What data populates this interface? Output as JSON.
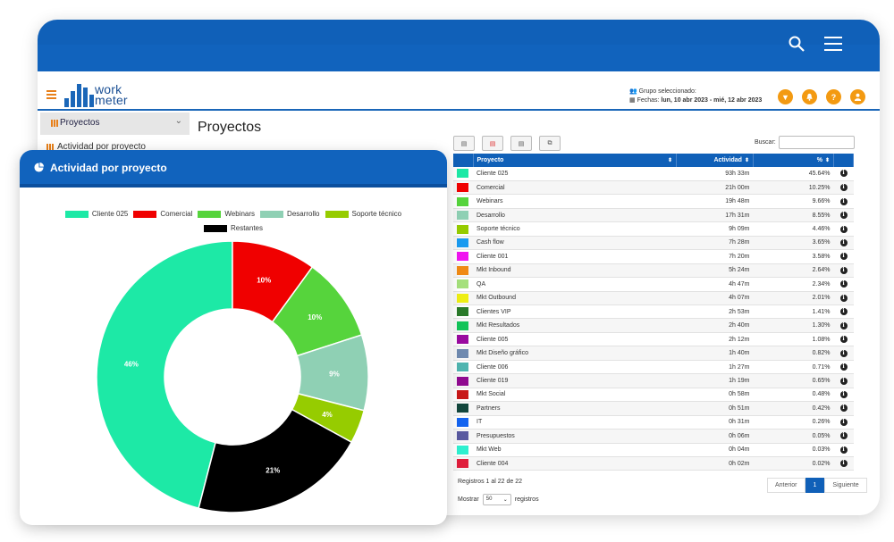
{
  "header": {
    "logo_line1": "work",
    "logo_line2": "meter",
    "group_label": "Grupo seleccionado:",
    "dates_label": "Fechas:",
    "dates_value": "lun, 10 abr 2023 - mié, 12 abr 2023",
    "buttons": [
      "filter-icon",
      "bell-icon",
      "help-icon",
      "user-icon"
    ],
    "button_glyphs": [
      "▼",
      "🔔",
      "?",
      "●"
    ]
  },
  "sidebar": {
    "section_label": "Proyectos",
    "items": [
      {
        "label": "Actividad por proyecto"
      }
    ]
  },
  "main": {
    "title": "Proyectos",
    "search_label": "Buscar:",
    "search_value": ""
  },
  "table": {
    "columns": [
      "Proyecto",
      "Actividad",
      "%"
    ],
    "rows": [
      {
        "color": "#1de9a6",
        "name": "Cliente 025",
        "act": "93h 33m",
        "pct": "45.64%"
      },
      {
        "color": "#f00000",
        "name": "Comercial",
        "act": "21h 00m",
        "pct": "10.25%"
      },
      {
        "color": "#56d43c",
        "name": "Webinars",
        "act": "19h 48m",
        "pct": "9.66%"
      },
      {
        "color": "#8fd0b4",
        "name": "Desarrollo",
        "act": "17h 31m",
        "pct": "8.55%"
      },
      {
        "color": "#96cc00",
        "name": "Soporte técnico",
        "act": "9h 09m",
        "pct": "4.46%"
      },
      {
        "color": "#1a9bf0",
        "name": "Cash flow",
        "act": "7h 28m",
        "pct": "3.65%"
      },
      {
        "color": "#f014f0",
        "name": "Cliente 001",
        "act": "7h 20m",
        "pct": "3.58%"
      },
      {
        "color": "#f08a14",
        "name": "Mkt Inbound",
        "act": "5h 24m",
        "pct": "2.64%"
      },
      {
        "color": "#a5e07c",
        "name": "QA",
        "act": "4h 47m",
        "pct": "2.34%"
      },
      {
        "color": "#eeee14",
        "name": "Mkt Outbound",
        "act": "4h 07m",
        "pct": "2.01%"
      },
      {
        "color": "#2a7a2a",
        "name": "Clientes VIP",
        "act": "2h 53m",
        "pct": "1.41%"
      },
      {
        "color": "#12c45a",
        "name": "Mkt Resultados",
        "act": "2h 40m",
        "pct": "1.30%"
      },
      {
        "color": "#9a0aa0",
        "name": "Cliente 005",
        "act": "2h 12m",
        "pct": "1.08%"
      },
      {
        "color": "#6f8ab0",
        "name": "Mkt Diseño gráfico",
        "act": "1h 40m",
        "pct": "0.82%"
      },
      {
        "color": "#4fb5b0",
        "name": "Cliente 006",
        "act": "1h 27m",
        "pct": "0.71%"
      },
      {
        "color": "#900a90",
        "name": "Cliente 019",
        "act": "1h 19m",
        "pct": "0.65%"
      },
      {
        "color": "#c81818",
        "name": "Mkt Social",
        "act": "0h 58m",
        "pct": "0.48%"
      },
      {
        "color": "#12463c",
        "name": "Partners",
        "act": "0h 51m",
        "pct": "0.42%"
      },
      {
        "color": "#1464f0",
        "name": "IT",
        "act": "0h 31m",
        "pct": "0.26%"
      },
      {
        "color": "#5a5aa0",
        "name": "Presupuestos",
        "act": "0h 06m",
        "pct": "0.05%"
      },
      {
        "color": "#2ef0d0",
        "name": "Mkt Web",
        "act": "0h 04m",
        "pct": "0.03%"
      },
      {
        "color": "#e01e3c",
        "name": "Cliente 004",
        "act": "0h 02m",
        "pct": "0.02%"
      }
    ],
    "footer_info": "Registros 1 al 22 de 22",
    "show_label": "Mostrar",
    "page_size": "50",
    "records_label": "registros",
    "pager": {
      "prev": "Anterior",
      "current": "1",
      "next": "Siguiente"
    }
  },
  "card": {
    "title": "Actividad por proyecto"
  },
  "chart_data": {
    "type": "pie",
    "title": "Actividad por proyecto",
    "categories": [
      "Cliente 025",
      "Comercial",
      "Webinars",
      "Desarrollo",
      "Soporte técnico",
      "Restantes"
    ],
    "values": [
      46,
      10,
      10,
      9,
      4,
      21
    ],
    "labels": [
      "46%",
      "10%",
      "10%",
      "9%",
      "4%",
      "21%"
    ],
    "colors": [
      "#1de9a6",
      "#f00000",
      "#56d43c",
      "#8fd0b4",
      "#96cc00",
      "#000000"
    ],
    "donut": true,
    "legend": "top"
  }
}
